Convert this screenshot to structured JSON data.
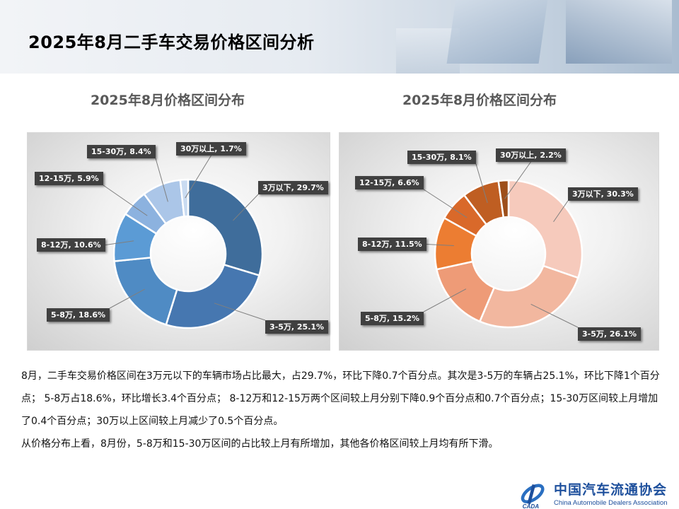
{
  "header": {
    "title": "2025年8月二手车交易价格区间分析"
  },
  "chart_data": [
    {
      "type": "pie",
      "title": "2025年8月价格区间分布",
      "categories": [
        "3万以下",
        "3-5万",
        "5-8万",
        "8-12万",
        "12-15万",
        "15-30万",
        "30万以上"
      ],
      "values": [
        29.7,
        25.1,
        18.6,
        10.6,
        5.9,
        8.4,
        1.7
      ],
      "labels": [
        "3万以下, 29.7%",
        "3-5万, 25.1%",
        "5-8万, 18.6%",
        "8-12万, 10.6%",
        "12-15万, 5.9%",
        "15-30万, 8.4%",
        "30万以上, 1.7%"
      ],
      "colors": [
        "#3f6d9b",
        "#4677b0",
        "#4f8bc4",
        "#5b9bd5",
        "#8cb2df",
        "#abc6e8",
        "#c9dbf1"
      ],
      "donut": true
    },
    {
      "type": "pie",
      "title": "2025年8月价格区间分布",
      "categories": [
        "3万以下",
        "3-5万",
        "5-8万",
        "8-12万",
        "12-15万",
        "15-30万",
        "30万以上"
      ],
      "values": [
        30.3,
        26.1,
        15.2,
        11.5,
        6.6,
        8.1,
        2.2
      ],
      "labels": [
        "3万以下, 30.3%",
        "3-5万, 26.1%",
        "5-8万, 15.2%",
        "8-12万, 11.5%",
        "12-15万, 6.6%",
        "15-30万, 8.1%",
        "30万以上, 2.2%"
      ],
      "colors": [
        "#f6cabc",
        "#f2b79f",
        "#ee9b77",
        "#ec7d32",
        "#d9692a",
        "#bf5e22",
        "#9d4f1b"
      ],
      "donut": true
    }
  ],
  "body": {
    "paragraph1": "8月，二手车交易价格区间在3万元以下的车辆市场占比最大，占29.7%，环比下降0.7个百分点。其次是3-5万的车辆占25.1%，环比下降1个百分点； 5-8万占18.6%，环比增长3.4个百分点； 8-12万和12-15万两个区间较上月分别下降0.9个百分点和0.7个百分点；15-30万区间较上月增加了0.4个百分点；30万以上区间较上月减少了0.5个百分点。",
    "paragraph2": "从价格分布上看，8月份，5-8万和15-30万区间的占比较上月有所增加，其他各价格区间较上月均有所下滑。"
  },
  "logo": {
    "name_cn": "中国汽车流通协会",
    "name_en": "China Automobile Dealers Association",
    "abbr": "CADA"
  }
}
